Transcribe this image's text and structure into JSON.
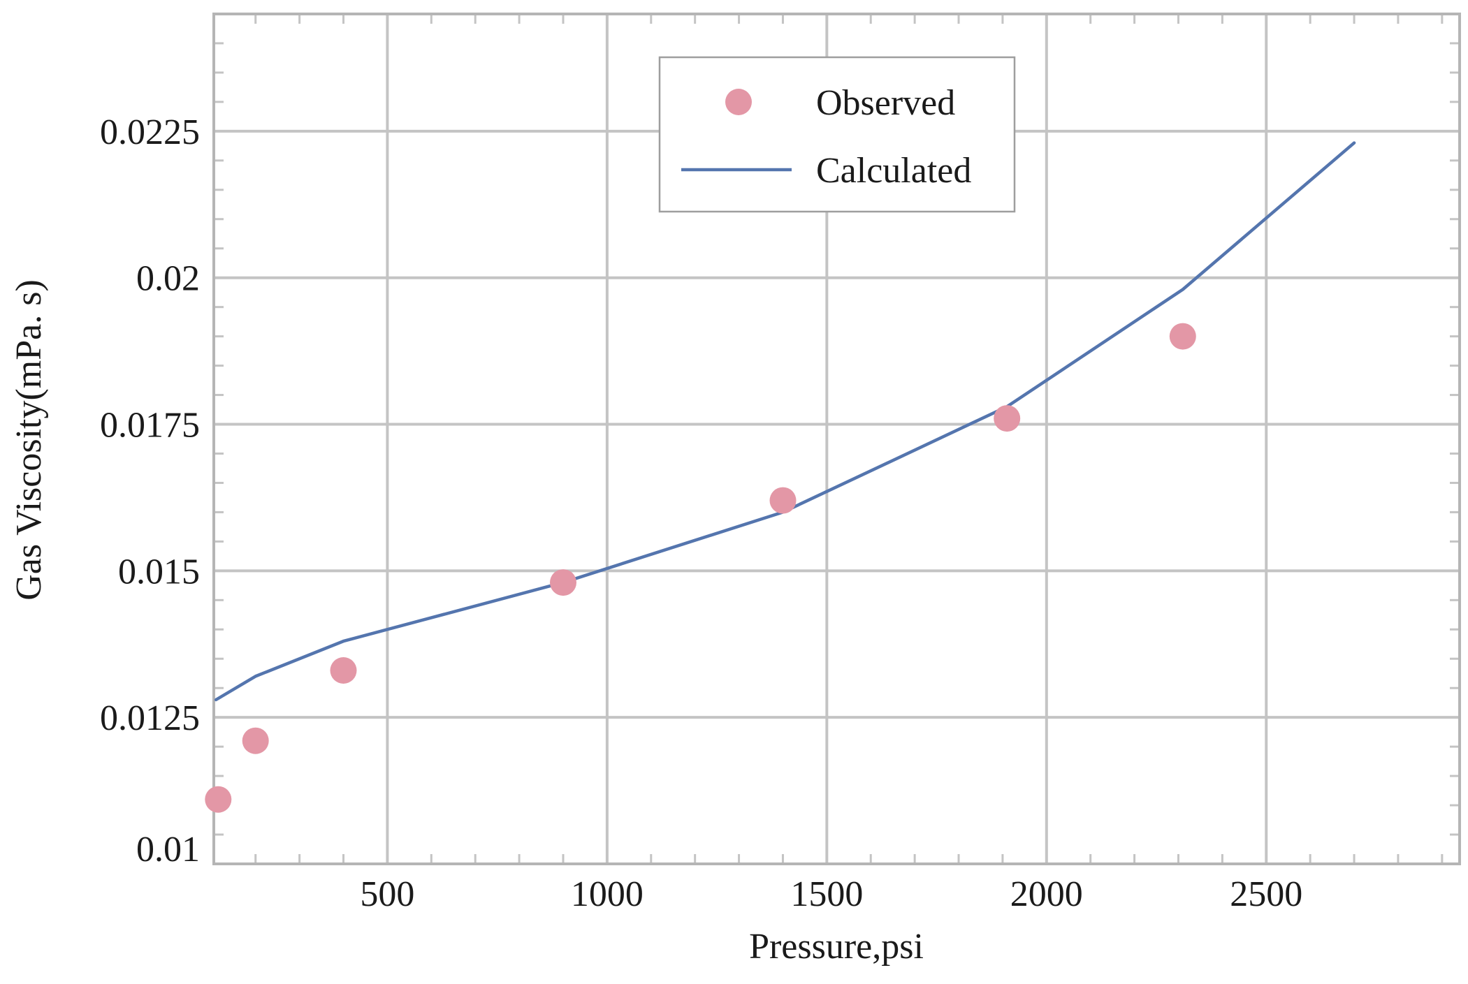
{
  "chart_data": {
    "type": "scatter+line",
    "title": "",
    "xlabel": "Pressure,psi",
    "ylabel": "Gas Viscosity(mPa. s)",
    "xlim": [
      105,
      2940
    ],
    "ylim": [
      0.01,
      0.0245
    ],
    "x_ticks": [
      500,
      1000,
      1500,
      2000,
      2500
    ],
    "y_ticks": [
      0.01,
      0.0125,
      0.015,
      0.0175,
      0.02,
      0.0225
    ],
    "x_tick_labels": [
      "500",
      "1000",
      "1500",
      "2000",
      "2500"
    ],
    "y_tick_labels": [
      "0.01",
      "0.0125",
      "0.015",
      "0.0175",
      "0.02",
      "0.0225"
    ],
    "grid": true,
    "legend_position": "top-center",
    "series": [
      {
        "name": "Observed",
        "type": "scatter",
        "color": "#e397a6",
        "x": [
          115,
          200,
          400,
          900,
          1400,
          1910,
          2310
        ],
        "y": [
          0.0111,
          0.0121,
          0.0133,
          0.0148,
          0.0162,
          0.0176,
          0.019
        ]
      },
      {
        "name": "Calculated",
        "type": "line",
        "color": "#5475ae",
        "x": [
          110,
          200,
          400,
          900,
          1400,
          1910,
          2310,
          2700
        ],
        "y": [
          0.0128,
          0.0132,
          0.0138,
          0.0148,
          0.016,
          0.0178,
          0.0198,
          0.0223
        ]
      }
    ],
    "legend": {
      "observed_label": "Observed",
      "calculated_label": "Calculated"
    }
  }
}
